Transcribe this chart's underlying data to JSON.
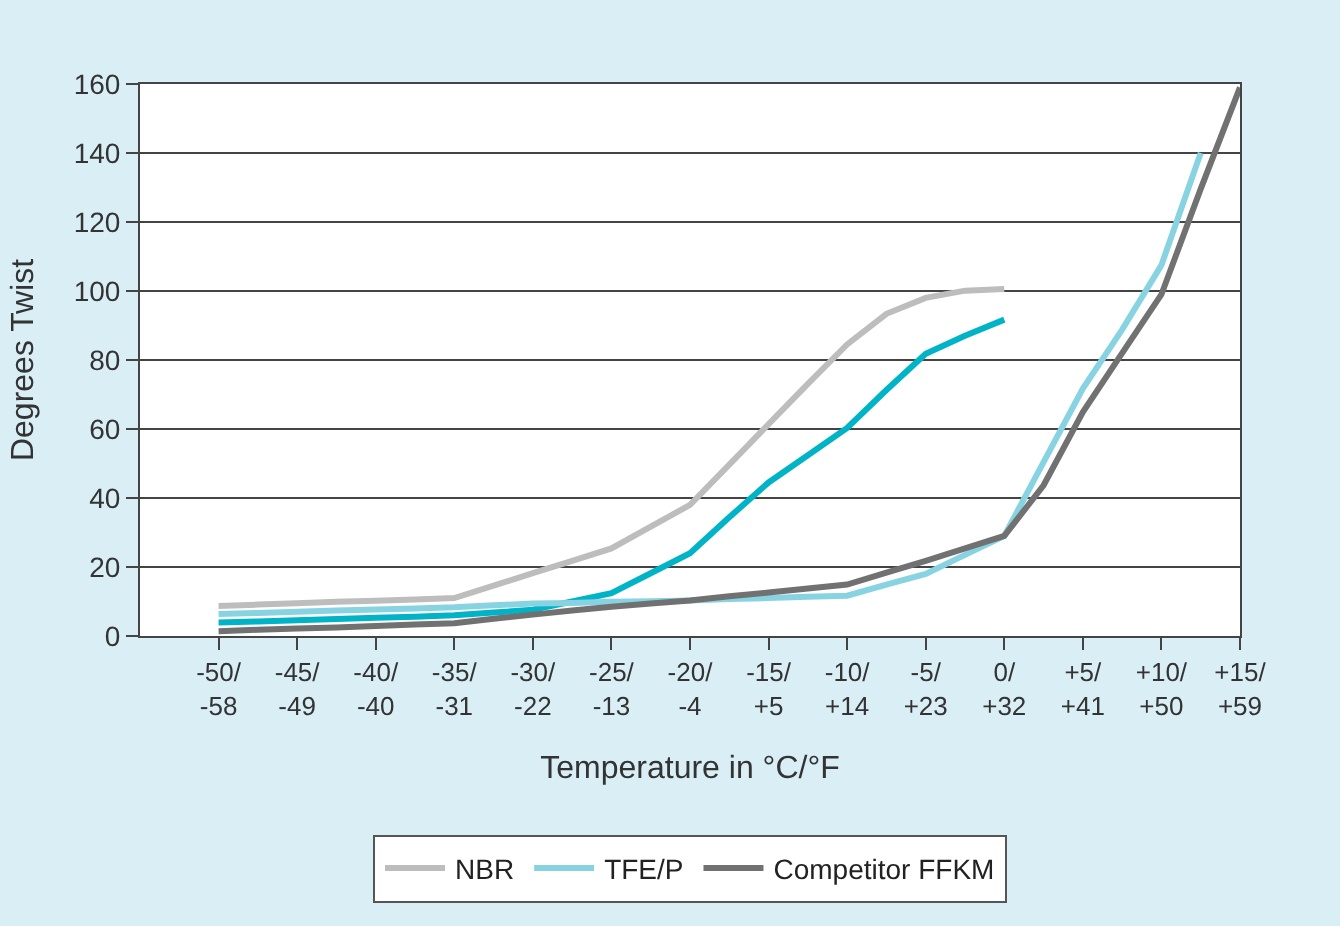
{
  "chart_data": {
    "type": "line",
    "xlabel": "Temperature in °C/°F",
    "ylabel": "Degrees Twist",
    "ylim": [
      0,
      160
    ],
    "categories": [
      null,
      null,
      "-50/\n-58",
      null,
      "-45/\n-49",
      null,
      "-40/\n-40",
      null,
      "-35/\n-31",
      null,
      "-30/\n-22",
      null,
      "-25/\n-13",
      null,
      "-20/\n-4",
      null,
      "-15/\n+5",
      null,
      "-10/\n+14",
      null,
      "-5/\n+23",
      null,
      "0/\n+32",
      null,
      "+5/\n+41",
      null,
      "+10/\n+50",
      null,
      "+15/\n+59"
    ],
    "yticks": [
      0,
      20,
      40,
      60,
      80,
      100,
      120,
      140,
      160
    ],
    "grid": "y",
    "legend": "bottom",
    "marker": "none",
    "line_style": "solid",
    "series": [
      {
        "name": "NBR",
        "color": "#bdbdbd",
        "values": [
          null,
          null,
          8.7,
          9.1,
          9.5,
          9.9,
          10.2,
          10.6,
          11,
          14.6,
          18.2,
          21.8,
          25.4,
          31.7,
          38,
          49.7,
          61.4,
          73.1,
          84.5,
          93.4,
          98,
          100.1,
          100.6,
          null,
          null,
          null,
          null,
          null,
          null
        ]
      },
      {
        "color": "#00b3c6",
        "values": [
          null,
          null,
          3.9,
          4.2,
          4.6,
          4.9,
          5.3,
          5.6,
          6,
          6.8,
          7.6,
          10,
          12.4,
          18.2,
          24,
          34.4,
          44.5,
          52.4,
          60.3,
          71.3,
          81.8,
          87,
          91.7,
          null,
          null,
          null,
          null,
          null,
          null
        ]
      },
      {
        "name": "TFE/P",
        "color": "#88d3e2",
        "values": [
          null,
          null,
          6.4,
          6.7,
          7,
          7.4,
          7.7,
          8,
          8.3,
          8.9,
          9.4,
          9.6,
          9.9,
          10.1,
          10.3,
          10.7,
          11,
          11.4,
          11.7,
          14.9,
          18,
          23.5,
          29,
          50.4,
          71.7,
          88.8,
          107.5,
          140,
          null
        ]
      },
      {
        "name": "Competitor FFKM",
        "color": "#717171",
        "values": [
          null,
          null,
          1.4,
          1.8,
          2.2,
          2.5,
          2.9,
          3.3,
          3.7,
          5,
          6.2,
          7.4,
          8.5,
          9.4,
          10.3,
          11.5,
          12.6,
          13.8,
          14.9,
          18.4,
          21.8,
          25.4,
          29,
          43.7,
          64.9,
          82,
          99,
          129.6,
          159
        ]
      }
    ]
  }
}
